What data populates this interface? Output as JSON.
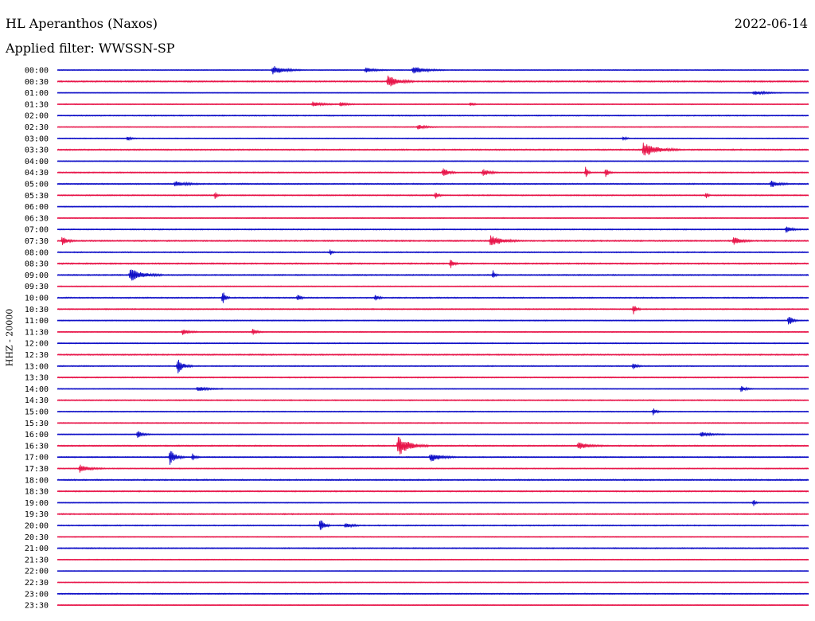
{
  "header": {
    "station": "HL Aperanthos (Naxos)",
    "date": "2022-06-14",
    "filter": "Applied filter: WWSSN-SP"
  },
  "colors": {
    "odd_trace": "#1010c8",
    "even_trace": "#e8164a"
  },
  "chart_data": {
    "type": "line",
    "title": "HL Aperanthos (Naxos)",
    "subtitle": "Applied filter: WWSSN-SP",
    "ylabel": "HHZ - 20000",
    "xlabel": "",
    "grid": false,
    "legend": "none",
    "trace_time_labels": [
      "00:00",
      "00:30",
      "01:00",
      "01:30",
      "02:00",
      "02:30",
      "03:00",
      "03:30",
      "04:00",
      "04:30",
      "05:00",
      "05:30",
      "06:00",
      "06:30",
      "07:00",
      "07:30",
      "08:00",
      "08:30",
      "09:00",
      "09:30",
      "10:00",
      "10:30",
      "11:00",
      "11:30",
      "12:00",
      "12:30",
      "13:00",
      "13:30",
      "14:00",
      "14:30",
      "15:00",
      "15:30",
      "16:00",
      "16:30",
      "17:00",
      "17:30",
      "18:00",
      "18:30",
      "19:00",
      "19:30",
      "20:00",
      "20:30",
      "21:00",
      "21:30",
      "22:00",
      "22:30",
      "23:00",
      "23:30"
    ],
    "trace_minutes": 30,
    "trace_colors_cycle": [
      "blue",
      "red"
    ],
    "noise_level": [
      0.35,
      0.55,
      0.3,
      0.4,
      0.45,
      0.35,
      0.35,
      0.55,
      0.35,
      0.45,
      0.5,
      0.45,
      0.35,
      0.4,
      0.45,
      0.55,
      0.45,
      0.55,
      0.5,
      0.35,
      0.5,
      0.45,
      0.4,
      0.4,
      0.4,
      0.5,
      0.45,
      0.45,
      0.35,
      0.45,
      0.4,
      0.4,
      0.35,
      0.5,
      0.45,
      0.4,
      0.55,
      0.5,
      0.35,
      0.5,
      0.45,
      0.35,
      0.45,
      0.35,
      0.3,
      0.35,
      0.45,
      0.35
    ],
    "events": [
      {
        "trace": 0,
        "minute": 8.6,
        "amp": 6,
        "dur": 1.2
      },
      {
        "trace": 0,
        "minute": 12.3,
        "amp": 3,
        "dur": 1.0
      },
      {
        "trace": 0,
        "minute": 14.2,
        "amp": 5,
        "dur": 1.3
      },
      {
        "trace": 1,
        "minute": 13.2,
        "amp": 8,
        "dur": 1.0
      },
      {
        "trace": 2,
        "minute": 27.8,
        "amp": 3,
        "dur": 1.2
      },
      {
        "trace": 3,
        "minute": 10.2,
        "amp": 3,
        "dur": 1.0
      },
      {
        "trace": 3,
        "minute": 11.3,
        "amp": 3,
        "dur": 0.6
      },
      {
        "trace": 3,
        "minute": 16.5,
        "amp": 3,
        "dur": 0.3
      },
      {
        "trace": 5,
        "minute": 14.4,
        "amp": 3,
        "dur": 0.8
      },
      {
        "trace": 6,
        "minute": 2.8,
        "amp": 3,
        "dur": 0.4
      },
      {
        "trace": 6,
        "minute": 22.6,
        "amp": 3,
        "dur": 0.3
      },
      {
        "trace": 7,
        "minute": 23.4,
        "amp": 9,
        "dur": 1.5
      },
      {
        "trace": 9,
        "minute": 15.4,
        "amp": 7,
        "dur": 0.5
      },
      {
        "trace": 9,
        "minute": 17.0,
        "amp": 5,
        "dur": 0.6
      },
      {
        "trace": 9,
        "minute": 21.1,
        "amp": 10,
        "dur": 0.2
      },
      {
        "trace": 9,
        "minute": 21.9,
        "amp": 6,
        "dur": 0.3
      },
      {
        "trace": 10,
        "minute": 4.7,
        "amp": 4,
        "dur": 1.0
      },
      {
        "trace": 10,
        "minute": 28.5,
        "amp": 5,
        "dur": 0.7
      },
      {
        "trace": 11,
        "minute": 6.3,
        "amp": 6,
        "dur": 0.2
      },
      {
        "trace": 11,
        "minute": 15.1,
        "amp": 5,
        "dur": 0.3
      },
      {
        "trace": 11,
        "minute": 25.9,
        "amp": 5,
        "dur": 0.2
      },
      {
        "trace": 14,
        "minute": 29.1,
        "amp": 4,
        "dur": 0.6
      },
      {
        "trace": 15,
        "minute": 0.2,
        "amp": 6,
        "dur": 0.5
      },
      {
        "trace": 15,
        "minute": 17.3,
        "amp": 7,
        "dur": 1.2
      },
      {
        "trace": 15,
        "minute": 27.0,
        "amp": 5,
        "dur": 0.8
      },
      {
        "trace": 16,
        "minute": 10.9,
        "amp": 4,
        "dur": 0.2
      },
      {
        "trace": 17,
        "minute": 15.7,
        "amp": 7,
        "dur": 0.3
      },
      {
        "trace": 18,
        "minute": 2.9,
        "amp": 8,
        "dur": 1.3
      },
      {
        "trace": 18,
        "minute": 17.4,
        "amp": 6,
        "dur": 0.2
      },
      {
        "trace": 20,
        "minute": 6.6,
        "amp": 10,
        "dur": 0.3
      },
      {
        "trace": 20,
        "minute": 9.6,
        "amp": 5,
        "dur": 0.3
      },
      {
        "trace": 20,
        "minute": 12.7,
        "amp": 5,
        "dur": 0.3
      },
      {
        "trace": 21,
        "minute": 23.0,
        "amp": 7,
        "dur": 0.3
      },
      {
        "trace": 22,
        "minute": 29.2,
        "amp": 8,
        "dur": 0.4
      },
      {
        "trace": 23,
        "minute": 5.0,
        "amp": 4,
        "dur": 0.6
      },
      {
        "trace": 23,
        "minute": 7.8,
        "amp": 4,
        "dur": 0.4
      },
      {
        "trace": 26,
        "minute": 4.8,
        "amp": 10,
        "dur": 0.6
      },
      {
        "trace": 26,
        "minute": 23.0,
        "amp": 4,
        "dur": 0.4
      },
      {
        "trace": 28,
        "minute": 5.6,
        "amp": 3,
        "dur": 1.0
      },
      {
        "trace": 28,
        "minute": 27.3,
        "amp": 4,
        "dur": 0.5
      },
      {
        "trace": 30,
        "minute": 23.8,
        "amp": 5,
        "dur": 0.3
      },
      {
        "trace": 32,
        "minute": 3.2,
        "amp": 5,
        "dur": 0.5
      },
      {
        "trace": 32,
        "minute": 25.7,
        "amp": 3,
        "dur": 1.0
      },
      {
        "trace": 33,
        "minute": 13.6,
        "amp": 13,
        "dur": 1.2
      },
      {
        "trace": 33,
        "minute": 20.8,
        "amp": 5,
        "dur": 1.0
      },
      {
        "trace": 34,
        "minute": 4.5,
        "amp": 10,
        "dur": 0.6
      },
      {
        "trace": 34,
        "minute": 5.4,
        "amp": 5,
        "dur": 0.3
      },
      {
        "trace": 34,
        "minute": 14.9,
        "amp": 6,
        "dur": 1.0
      },
      {
        "trace": 35,
        "minute": 0.9,
        "amp": 5,
        "dur": 1.0
      },
      {
        "trace": 38,
        "minute": 27.8,
        "amp": 5,
        "dur": 0.2
      },
      {
        "trace": 40,
        "minute": 10.5,
        "amp": 10,
        "dur": 0.4
      },
      {
        "trace": 40,
        "minute": 11.5,
        "amp": 4,
        "dur": 0.6
      }
    ]
  }
}
